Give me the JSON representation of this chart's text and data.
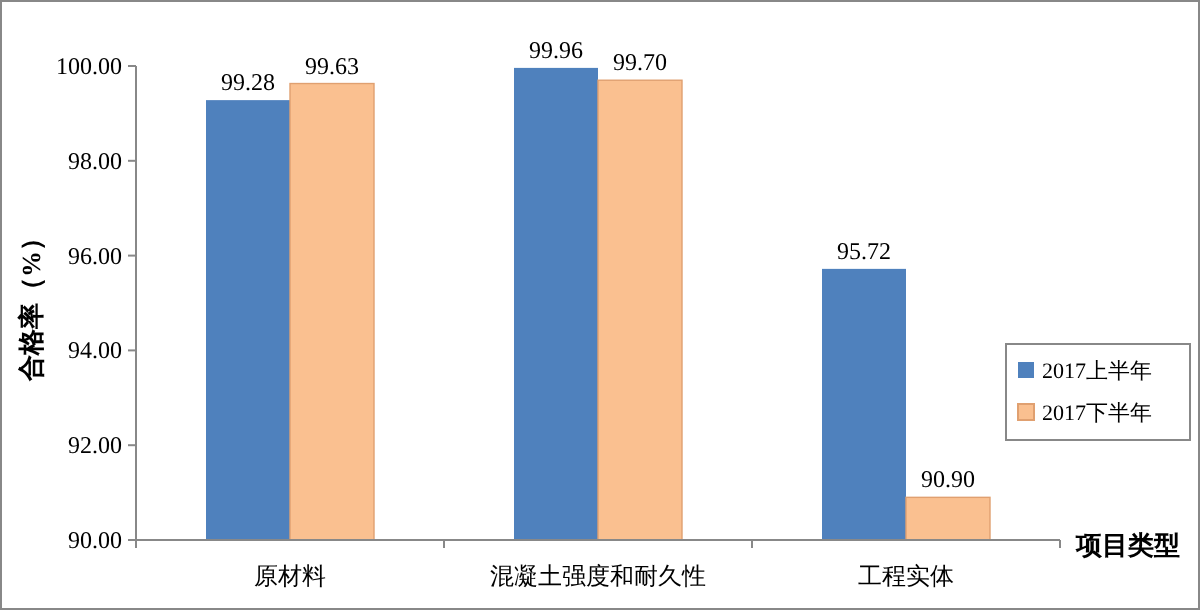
{
  "chart_data": {
    "type": "bar",
    "xlabel": "项目类型",
    "ylabel": "合格率（%）",
    "categories": [
      "原材料",
      "混凝土强度和耐久性",
      "工程实体"
    ],
    "series": [
      {
        "name": "2017上半年",
        "color": "#4f81bd",
        "values": [
          99.28,
          99.96,
          95.72
        ],
        "value_labels": [
          "99.28",
          "99.96",
          "95.72"
        ]
      },
      {
        "name": "2017下半年",
        "color": "#fac090",
        "values": [
          99.63,
          99.7,
          90.9
        ],
        "value_labels": [
          "99.63",
          "99.70",
          "90.90"
        ]
      }
    ],
    "ylim": [
      90,
      100
    ],
    "yticks": [
      {
        "value": 90,
        "label": "90.00"
      },
      {
        "value": 92,
        "label": "92.00"
      },
      {
        "value": 94,
        "label": "94.00"
      },
      {
        "value": 96,
        "label": "96.00"
      },
      {
        "value": 98,
        "label": "98.00"
      },
      {
        "value": 100,
        "label": "100.00"
      }
    ],
    "grid": false,
    "legend": "right"
  }
}
